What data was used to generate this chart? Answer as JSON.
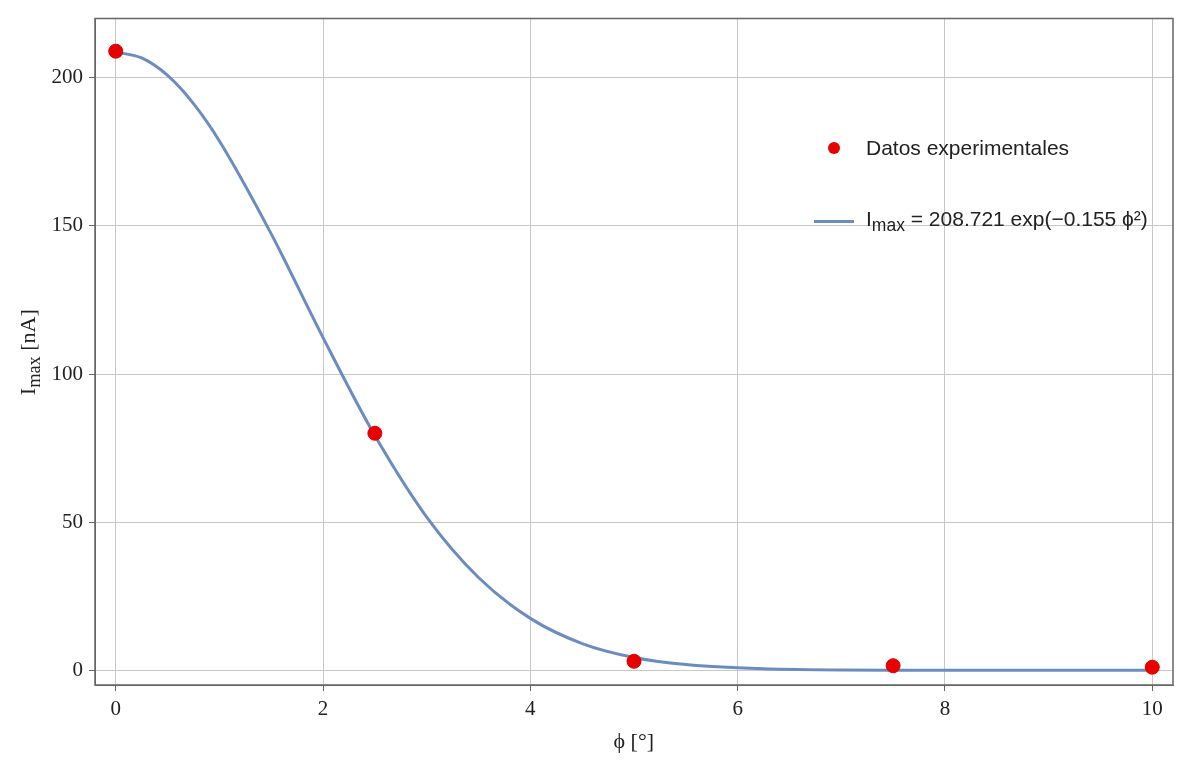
{
  "chart_data": {
    "type": "scatter",
    "xlabel": "ϕ [°]",
    "ylabel": "I$_{max}$ [nA]",
    "xlim": [
      -0.2,
      10.2
    ],
    "ylim": [
      -5,
      220
    ],
    "xticks": [
      0,
      2,
      4,
      6,
      8,
      10
    ],
    "yticks": [
      0,
      50,
      100,
      150,
      200
    ],
    "grid": true,
    "legend": "top right",
    "marker": "circle",
    "series": [
      {
        "name": "Datos experimentales",
        "color": "#e60000",
        "x": [
          0,
          2.5,
          5,
          7.5,
          10
        ],
        "values": [
          209,
          80,
          3,
          1.5,
          1
        ]
      },
      {
        "name": "I$_{max}$ = 208.721 exp(−0.155 ϕ²)",
        "type": "line",
        "color": "#6a8cbf",
        "marker": "none",
        "x": [
          0,
          0.25,
          0.5,
          0.75,
          1,
          1.5,
          2,
          2.5,
          3,
          3.5,
          4,
          4.5,
          5,
          5.5,
          6,
          7,
          8,
          9,
          10
        ],
        "values": [
          208.7,
          206.7,
          200.8,
          191.3,
          178.7,
          147.3,
          112.3,
          79.2,
          51.7,
          31.3,
          17.5,
          9.0,
          4.3,
          1.9,
          0.8,
          0.1,
          0,
          0,
          0
        ]
      }
    ]
  }
}
